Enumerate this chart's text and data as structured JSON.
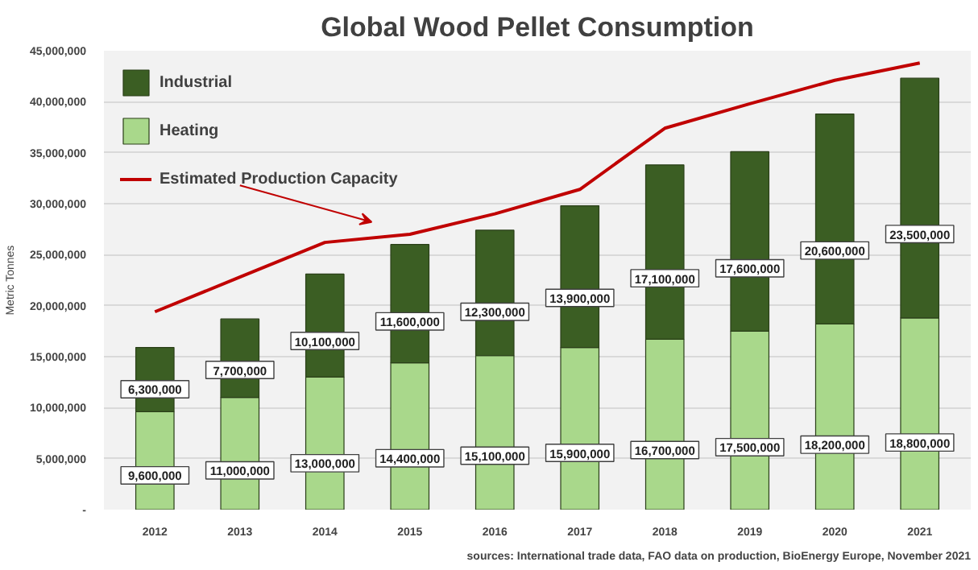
{
  "chart_data": {
    "type": "bar",
    "stacked": true,
    "title": "Global Wood Pellet Consumption",
    "ylabel": "Metric Tonnes",
    "categories": [
      "2012",
      "2013",
      "2014",
      "2015",
      "2016",
      "2017",
      "2018",
      "2019",
      "2020",
      "2021"
    ],
    "series": [
      {
        "name": "Heating",
        "color": "#a9d88b",
        "values": [
          9600000,
          11000000,
          13000000,
          14400000,
          15100000,
          15900000,
          16700000,
          17500000,
          18200000,
          18800000
        ],
        "value_labels": [
          "9,600,000",
          "11,000,000",
          "13,000,000",
          "14,400,000",
          "15,100,000",
          "15,900,000",
          "16,700,000",
          "17,500,000",
          "18,200,000",
          "18,800,000"
        ]
      },
      {
        "name": "Industrial",
        "color": "#3b5e23",
        "values": [
          6300000,
          7700000,
          10100000,
          11600000,
          12300000,
          13900000,
          17100000,
          17600000,
          20600000,
          23500000
        ],
        "value_labels": [
          "6,300,000",
          "7,700,000",
          "10,100,000",
          "11,600,000",
          "12,300,000",
          "13,900,000",
          "17,100,000",
          "17,600,000",
          "20,600,000",
          "23,500,000"
        ]
      },
      {
        "name": "Estimated Production Capacity",
        "type": "line",
        "color": "#c00000",
        "values": [
          19400000,
          22800000,
          26200000,
          27000000,
          29000000,
          31400000,
          37400000,
          39800000,
          42100000,
          43800000
        ]
      }
    ],
    "ylim": [
      0,
      45000000
    ],
    "yticks": [
      {
        "value": 0,
        "label": "-"
      },
      {
        "value": 5000000,
        "label": "5,000,000"
      },
      {
        "value": 10000000,
        "label": "10,000,000"
      },
      {
        "value": 15000000,
        "label": "15,000,000"
      },
      {
        "value": 20000000,
        "label": "20,000,000"
      },
      {
        "value": 25000000,
        "label": "25,000,000"
      },
      {
        "value": 30000000,
        "label": "30,000,000"
      },
      {
        "value": 35000000,
        "label": "35,000,000"
      },
      {
        "value": 40000000,
        "label": "40,000,000"
      },
      {
        "value": 45000000,
        "label": "45,000,000"
      }
    ],
    "grid": "y",
    "legend": "top left",
    "annotations": [
      "sources: International trade data, FAO data on production, BioEnergy Europe, November 2021"
    ]
  }
}
